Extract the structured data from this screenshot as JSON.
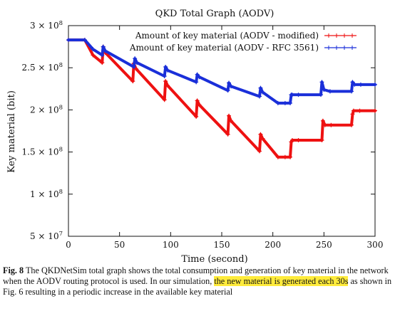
{
  "chart_data": {
    "type": "line",
    "title": "QKD Total Graph (AODV)",
    "xlabel": "Time (second)",
    "ylabel": "Key material (bit)",
    "xlim": [
      0,
      300
    ],
    "ylim": [
      50000000,
      300000000
    ],
    "xticks": [
      0,
      50,
      100,
      150,
      200,
      250,
      300
    ],
    "xtick_labels": [
      "0",
      "50",
      "100",
      "150",
      "200",
      "250",
      "300"
    ],
    "yticks": [
      50000000,
      100000000,
      150000000,
      200000000,
      250000000,
      300000000
    ],
    "ytick_labels": [
      {
        "mant": "5 × 10",
        "exp": "7"
      },
      {
        "mant": "1 × 10",
        "exp": "8"
      },
      {
        "mant": "1.5 × 10",
        "exp": "8"
      },
      {
        "mant": "2 × 10",
        "exp": "8"
      },
      {
        "mant": "2.5 × 10",
        "exp": "8"
      },
      {
        "mant": "3 × 10",
        "exp": "8"
      }
    ],
    "grid": false,
    "legend_position": "top-right",
    "series": [
      {
        "name": "Amount of key material (AODV - modified)",
        "color": "#ee1111",
        "x": [
          0,
          16,
          24,
          33,
          34,
          36,
          63,
          64,
          66,
          94,
          95,
          97,
          125,
          126,
          128,
          156,
          157,
          159,
          187,
          188,
          190,
          205,
          212,
          217,
          218,
          219,
          225,
          248,
          249,
          251,
          257,
          277,
          278,
          279,
          285,
          300
        ],
        "y": [
          283000000,
          283000000,
          265000000,
          256000000,
          275000000,
          268000000,
          234000000,
          255000000,
          249000000,
          212000000,
          234000000,
          229000000,
          192000000,
          211000000,
          206000000,
          171000000,
          193000000,
          187000000,
          151000000,
          171000000,
          166000000,
          144000000,
          144000000,
          144000000,
          162000000,
          164000000,
          164000000,
          164000000,
          187000000,
          182000000,
          182000000,
          182000000,
          195000000,
          199000000,
          199000000,
          199000000
        ]
      },
      {
        "name": "Amount of key material (AODV - RFC 3561)",
        "color": "#1a2fd9",
        "x": [
          0,
          16,
          24,
          33,
          34,
          36,
          64,
          65,
          67,
          94,
          95,
          97,
          125,
          126,
          128,
          156,
          157,
          159,
          187,
          188,
          190,
          205,
          212,
          217,
          218,
          219,
          225,
          247,
          248,
          250,
          256,
          277,
          278,
          280,
          286,
          300
        ],
        "y": [
          283000000,
          283000000,
          272000000,
          265000000,
          275000000,
          270000000,
          251000000,
          261000000,
          256000000,
          240000000,
          251000000,
          247000000,
          233000000,
          242000000,
          239000000,
          223000000,
          232000000,
          228000000,
          216000000,
          226000000,
          221000000,
          208000000,
          208000000,
          208000000,
          218000000,
          218000000,
          218000000,
          218000000,
          233000000,
          224000000,
          222000000,
          222000000,
          233000000,
          230000000,
          230000000,
          230000000
        ]
      }
    ]
  },
  "caption": {
    "label": "Fig. 8",
    "text_before": " The QKDNetSim total graph shows the total consumption and generation of key material in the network when the AODV routing protocol is used. In our simulation, ",
    "highlight": "the new material is generated each 30s",
    "text_after": " as shown in Fig. 6 resulting in a periodic increase in the available key material"
  }
}
